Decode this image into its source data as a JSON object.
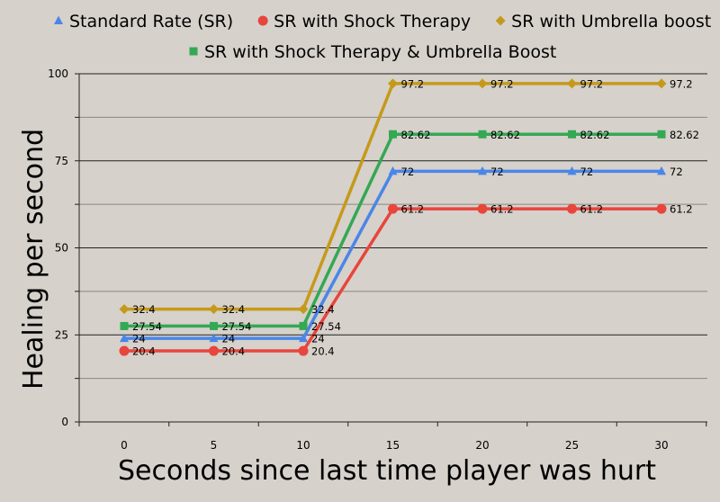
{
  "chart_data": {
    "type": "line",
    "title": "",
    "xlabel": "Seconds since last time player was hurt",
    "ylabel": "Healing per second",
    "categories": [
      "0",
      "5",
      "10",
      "15",
      "20",
      "25",
      "30"
    ],
    "x": [
      0,
      5,
      10,
      15,
      20,
      25,
      30
    ],
    "ylim": [
      0,
      100
    ],
    "yticks": [
      0,
      25,
      50,
      75,
      100
    ],
    "grid": true,
    "legend_position": "top",
    "series": [
      {
        "name": "Standard Rate (SR)",
        "color": "#4a86e8",
        "marker": "triangle",
        "values": [
          24,
          24,
          24,
          72,
          72,
          72,
          72
        ],
        "labels": [
          "24",
          "24",
          "24",
          "72",
          "72",
          "72",
          "72"
        ]
      },
      {
        "name": "SR with Shock Therapy",
        "color": "#e8453c",
        "marker": "circle",
        "values": [
          20.4,
          20.4,
          20.4,
          61.2,
          61.2,
          61.2,
          61.2
        ],
        "labels": [
          "20.4",
          "20.4",
          "20.4",
          "61.2",
          "61.2",
          "61.2",
          "61.2"
        ]
      },
      {
        "name": "SR with Umbrella boost",
        "color": "#c59a1a",
        "marker": "diamond",
        "values": [
          32.4,
          32.4,
          32.4,
          97.2,
          97.2,
          97.2,
          97.2
        ],
        "labels": [
          "32.4",
          "32.4",
          "32.4",
          "97.2",
          "97.2",
          "97.2",
          "97.2"
        ]
      },
      {
        "name": "SR with Shock Therapy & Umbrella Boost",
        "color": "#34a853",
        "marker": "square",
        "values": [
          27.54,
          27.54,
          27.54,
          82.62,
          82.62,
          82.62,
          82.62
        ],
        "labels": [
          "27.54",
          "27.54",
          "27.54",
          "82.62",
          "82.62",
          "82.62",
          "82.62"
        ]
      }
    ]
  }
}
